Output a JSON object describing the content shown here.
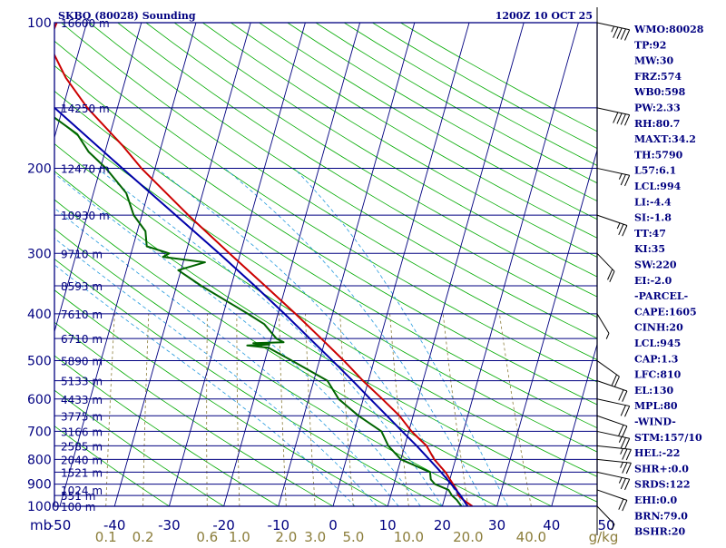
{
  "title_left": "SKBQ (80028) Sounding",
  "title_right": "1200Z 10 OCT 25",
  "colors": {
    "frame": "#000080",
    "isobar": "#000080",
    "isotherm": "#000080",
    "dry_adiabat": "#00aa00",
    "moist_adiabat": "#2299dd",
    "mixing_ratio": "#8b7d3a",
    "temperature": "#cc0000",
    "dewpoint": "#006400",
    "parcel": "#0000aa",
    "text": "#000080",
    "wind": "#000000"
  },
  "indices": [
    "WMO:80028",
    "TP:92",
    "MW:30",
    "FRZ:574",
    "WB0:598",
    "PW:2.33",
    "RH:80.7",
    "MAXT:34.2",
    "TH:5790",
    "L57:6.1",
    "LCL:994",
    "LI:-4.4",
    "SI:-1.8",
    "TT:47",
    "KI:35",
    "SW:220",
    "EI:-2.0",
    "-PARCEL-",
    "CAPE:1605",
    "CINH:20",
    "LCL:945",
    "CAP:1.3",
    "LFC:810",
    "EL:130",
    "MPL:80",
    "-WIND-",
    "STM:157/10",
    "HEL:-22",
    "SHR+:0.0",
    "SRDS:122",
    "EHI:0.0",
    "BRN:79.0",
    "BSHR:20"
  ],
  "chart_data": {
    "type": "line",
    "subtype": "skew-t log-p",
    "title": "SKBQ (80028) Sounding",
    "xlabel": "",
    "ylabel": "mb",
    "pressure_axis": {
      "range": [
        1000,
        100
      ],
      "scale": "log"
    },
    "temperature_axis": {
      "range": [
        -50,
        50
      ]
    },
    "pressure_ticks": [
      100,
      200,
      300,
      400,
      500,
      600,
      700,
      800,
      900,
      1000
    ],
    "temperature_ticks": [
      -50,
      -40,
      -30,
      -20,
      -10,
      0,
      10,
      20,
      30,
      40,
      50
    ],
    "height_labels": [
      {
        "p": 1000,
        "label": "100 m"
      },
      {
        "p": 950,
        "label": "551 m"
      },
      {
        "p": 925,
        "label": "1024 m"
      },
      {
        "p": 850,
        "label": "1521 m"
      },
      {
        "p": 800,
        "label": "2040 m"
      },
      {
        "p": 750,
        "label": "2585 m"
      },
      {
        "p": 700,
        "label": "3166 m"
      },
      {
        "p": 650,
        "label": "3775 m"
      },
      {
        "p": 600,
        "label": "4433 m"
      },
      {
        "p": 550,
        "label": "5133 m"
      },
      {
        "p": 500,
        "label": "5890 m"
      },
      {
        "p": 450,
        "label": "6710 m"
      },
      {
        "p": 400,
        "label": "7610 m"
      },
      {
        "p": 350,
        "label": "8593 m"
      },
      {
        "p": 300,
        "label": "9710 m"
      },
      {
        "p": 250,
        "label": "10930 m"
      },
      {
        "p": 200,
        "label": "12470 m"
      },
      {
        "p": 150,
        "label": "14250 m"
      },
      {
        "p": 100,
        "label": "16600 m"
      }
    ],
    "mixing_ratio_labels": [
      "0.1",
      "0.2",
      "0.6",
      "1.0",
      "2.0",
      "3.0",
      "5.0",
      "10.0",
      "20.0",
      "40.0",
      "g/kg"
    ],
    "mixing_ratio_lines": [
      0.1,
      0.2,
      0.6,
      1.0,
      2.0,
      3.0,
      5.0,
      10.0,
      20.0,
      40.0
    ],
    "series": [
      {
        "name": "",
        "key": "temperature",
        "points": [
          [
            1000,
            25.5
          ],
          [
            970,
            23.5
          ],
          [
            950,
            22.4
          ],
          [
            925,
            21.8
          ],
          [
            850,
            18.8
          ],
          [
            800,
            16.1
          ],
          [
            750,
            14.0
          ],
          [
            700,
            10.5
          ],
          [
            650,
            7.5
          ],
          [
            600,
            3.5
          ],
          [
            550,
            -1.0
          ],
          [
            500,
            -5.5
          ],
          [
            450,
            -10.8
          ],
          [
            400,
            -16.8
          ],
          [
            350,
            -23.8
          ],
          [
            300,
            -32.0
          ],
          [
            250,
            -41.5
          ],
          [
            200,
            -52.5
          ],
          [
            180,
            -57.0
          ],
          [
            150,
            -65.5
          ],
          [
            130,
            -71.0
          ],
          [
            110,
            -76.0
          ],
          [
            100,
            -75.5
          ],
          [
            92,
            -73.0
          ]
        ]
      },
      {
        "name": "",
        "key": "dewpoint",
        "points": [
          [
            1000,
            23.5
          ],
          [
            970,
            22.3
          ],
          [
            950,
            21.2
          ],
          [
            925,
            20.3
          ],
          [
            900,
            17.5
          ],
          [
            880,
            16.5
          ],
          [
            850,
            16.0
          ],
          [
            800,
            10.0
          ],
          [
            750,
            7.0
          ],
          [
            700,
            5.0
          ],
          [
            650,
            0.0
          ],
          [
            600,
            -4.5
          ],
          [
            550,
            -7.5
          ],
          [
            500,
            -15.0
          ],
          [
            470,
            -20.0
          ],
          [
            465,
            -24.0
          ],
          [
            463,
            -20.0
          ],
          [
            460,
            -23.0
          ],
          [
            458,
            -17.5
          ],
          [
            450,
            -19.0
          ],
          [
            420,
            -22.0
          ],
          [
            400,
            -25.5
          ],
          [
            350,
            -35.5
          ],
          [
            325,
            -40.5
          ],
          [
            313,
            -36.0
          ],
          [
            305,
            -44.0
          ],
          [
            300,
            -43.0
          ],
          [
            290,
            -47.5
          ],
          [
            270,
            -48.5
          ],
          [
            250,
            -51.5
          ],
          [
            225,
            -54.0
          ],
          [
            200,
            -59.0
          ],
          [
            185,
            -63.0
          ],
          [
            170,
            -66.0
          ],
          [
            150,
            -74.0
          ],
          [
            130,
            -80.0
          ],
          [
            115,
            -84.0
          ],
          [
            102,
            -85.0
          ],
          [
            95,
            -85.5
          ]
        ]
      },
      {
        "name": "",
        "key": "parcel",
        "points": [
          [
            1000,
            24.6
          ],
          [
            950,
            22.8
          ],
          [
            900,
            20.5
          ],
          [
            850,
            18.0
          ],
          [
            800,
            15.2
          ],
          [
            750,
            12.2
          ],
          [
            700,
            8.8
          ],
          [
            650,
            5.2
          ],
          [
            600,
            1.3
          ],
          [
            550,
            -2.9
          ],
          [
            500,
            -7.6
          ],
          [
            450,
            -12.9
          ],
          [
            400,
            -18.8
          ],
          [
            350,
            -25.7
          ],
          [
            300,
            -33.9
          ],
          [
            250,
            -43.8
          ],
          [
            200,
            -56.0
          ],
          [
            150,
            -71.5
          ],
          [
            120,
            -84.0
          ],
          [
            100,
            -95.0
          ]
        ]
      }
    ],
    "wind_barbs": [
      {
        "p": 1000,
        "dir": 150,
        "kt": 5
      },
      {
        "p": 925,
        "dir": 120,
        "kt": 10
      },
      {
        "p": 850,
        "dir": 110,
        "kt": 15
      },
      {
        "p": 800,
        "dir": 100,
        "kt": 15
      },
      {
        "p": 750,
        "dir": 100,
        "kt": 15
      },
      {
        "p": 700,
        "dir": 110,
        "kt": 15
      },
      {
        "p": 650,
        "dir": 120,
        "kt": 10
      },
      {
        "p": 600,
        "dir": 110,
        "kt": 10
      },
      {
        "p": 550,
        "dir": 120,
        "kt": 10
      },
      {
        "p": 500,
        "dir": 140,
        "kt": 10
      },
      {
        "p": 400,
        "dir": 160,
        "kt": 5
      },
      {
        "p": 300,
        "dir": 210,
        "kt": 10
      },
      {
        "p": 250,
        "dir": 240,
        "kt": 15
      },
      {
        "p": 200,
        "dir": 250,
        "kt": 15
      },
      {
        "p": 150,
        "dir": 250,
        "kt": 20
      },
      {
        "p": 100,
        "dir": 250,
        "kt": 25
      }
    ]
  }
}
